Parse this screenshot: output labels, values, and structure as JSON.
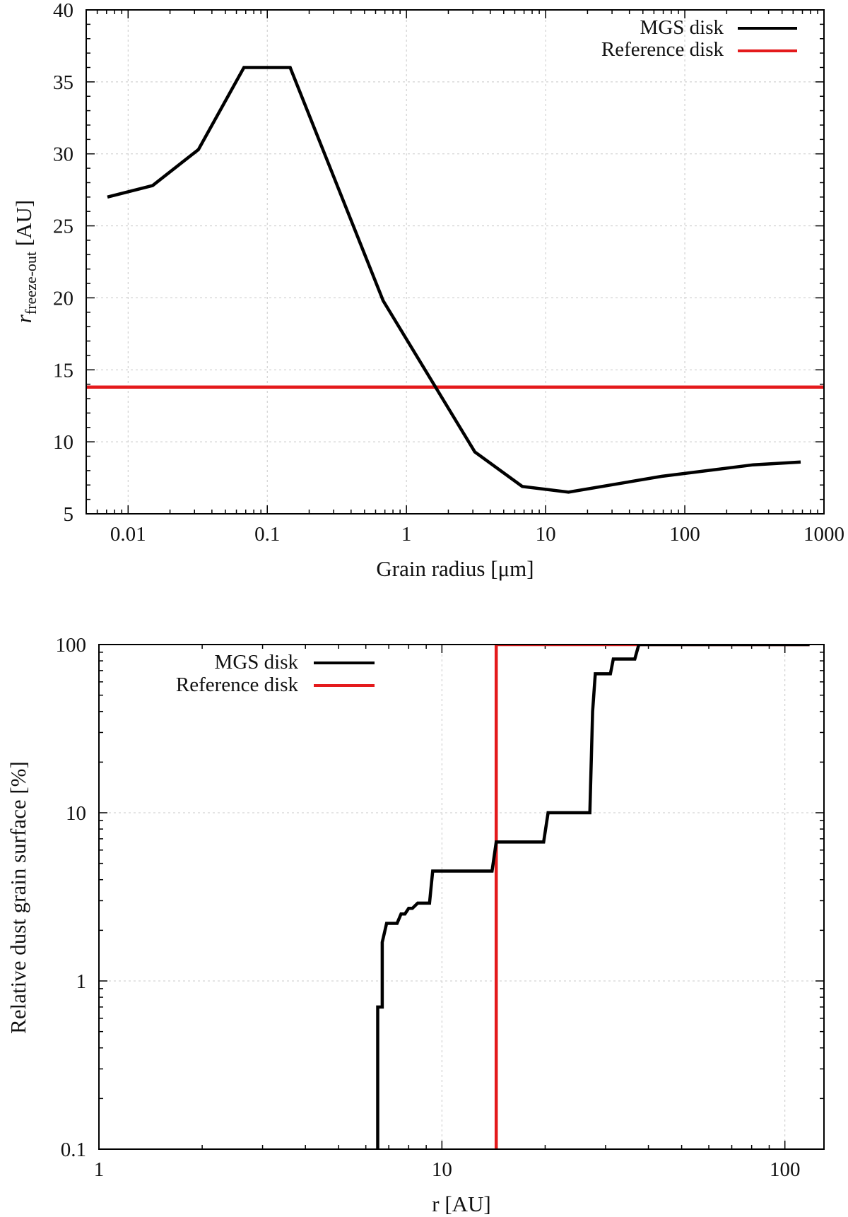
{
  "colors": {
    "mgs": "#000000",
    "reference": "#e41a1c",
    "grid": "#c8c8c8"
  },
  "chart_data": [
    {
      "type": "line",
      "title": "",
      "xlabel": "Grain radius [μm]",
      "ylabel_main": "r",
      "ylabel_sub": "freeze-out",
      "ylabel_suffix": " [AU]",
      "xscale": "log",
      "yscale": "linear",
      "xlim": [
        0.005,
        1000
      ],
      "ylim": [
        5,
        40
      ],
      "x_ticks": [
        0.01,
        0.1,
        1,
        10,
        100,
        1000
      ],
      "x_tick_labels": [
        "0.01",
        "0.1",
        "1",
        "10",
        "100",
        "1000"
      ],
      "y_ticks": [
        5,
        10,
        15,
        20,
        25,
        30,
        35,
        40
      ],
      "y_tick_labels": [
        "5",
        "10",
        "15",
        "20",
        "25",
        "30",
        "35",
        "40"
      ],
      "grid": true,
      "legend_position": "top-right",
      "series": [
        {
          "name": "MGS disk",
          "x": [
            0.0071,
            0.015,
            0.032,
            0.068,
            0.146,
            0.68,
            3.1,
            6.8,
            14.6,
            68,
            310,
            680
          ],
          "y": [
            27.0,
            27.8,
            30.3,
            36.0,
            36.0,
            19.8,
            9.3,
            6.9,
            6.5,
            7.6,
            8.4,
            8.6
          ]
        },
        {
          "name": "Reference disk",
          "x": [
            0.005,
            1000
          ],
          "y": [
            13.8,
            13.8
          ]
        }
      ]
    },
    {
      "type": "line",
      "title": "",
      "xlabel": "r [AU]",
      "ylabel": "Relative dust grain surface [%]",
      "xscale": "log",
      "yscale": "log",
      "xlim": [
        1,
        130
      ],
      "ylim": [
        0.1,
        100
      ],
      "x_ticks": [
        1,
        10,
        100
      ],
      "x_tick_labels": [
        "1",
        "10",
        "100"
      ],
      "y_ticks": [
        0.1,
        1,
        10,
        100
      ],
      "y_tick_labels": [
        "0.1",
        "1",
        "10",
        "100"
      ],
      "grid": true,
      "legend_position": "top-left",
      "series": [
        {
          "name": "MGS disk",
          "x": [
            6.5,
            6.5,
            6.7,
            6.7,
            6.9,
            7.1,
            7.4,
            7.6,
            7.8,
            8.0,
            8.2,
            8.5,
            8.8,
            9.2,
            9.4,
            14.0,
            14.4,
            19.8,
            20.4,
            27.0,
            27.5,
            28.0,
            31.0,
            31.6,
            36.5,
            37.5,
            118
          ],
          "y": [
            0.1,
            0.7,
            0.7,
            1.7,
            2.2,
            2.2,
            2.2,
            2.5,
            2.5,
            2.7,
            2.7,
            2.9,
            2.9,
            2.9,
            4.5,
            4.5,
            6.7,
            6.7,
            10,
            10,
            40,
            67,
            67,
            82,
            82,
            100,
            100
          ]
        },
        {
          "name": "Reference disk",
          "x": [
            14.4,
            14.4,
            118
          ],
          "y": [
            0.1,
            100,
            100
          ]
        }
      ]
    }
  ]
}
